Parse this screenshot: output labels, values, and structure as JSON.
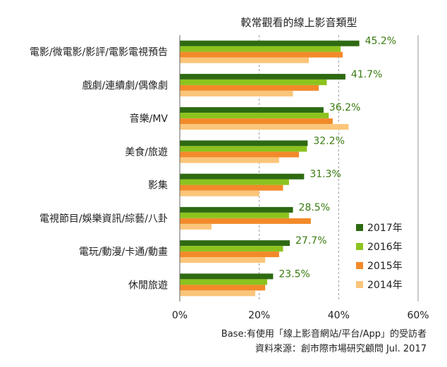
{
  "chart_data": {
    "type": "bar",
    "orientation": "horizontal",
    "title": "較常觀看的線上影音類型",
    "categories": [
      "電影/微電影/影評/電影電視預告",
      "戲劇/連續劇/偶像劇",
      "音樂/MV",
      "美食/旅遊",
      "影集",
      "電視節目/娛樂資訊/綜藝/八卦",
      "電玩/動漫/卡通/動畫",
      "休閒旅遊"
    ],
    "series": [
      {
        "name": "2017年",
        "color": "#2e6a12",
        "values": [
          45.2,
          41.7,
          36.2,
          32.2,
          31.3,
          28.5,
          27.7,
          23.5
        ]
      },
      {
        "name": "2016年",
        "color": "#8cc31e",
        "values": [
          40.5,
          37.0,
          37.5,
          32.0,
          27.5,
          27.5,
          26.0,
          22.0
        ]
      },
      {
        "name": "2015年",
        "color": "#f28a2a",
        "values": [
          41.0,
          35.0,
          38.5,
          30.0,
          26.0,
          33.0,
          25.0,
          21.5
        ]
      },
      {
        "name": "2014年",
        "color": "#fbc57a",
        "values": [
          32.5,
          28.5,
          42.5,
          25.0,
          20.0,
          8.0,
          21.5,
          19.0
        ]
      }
    ],
    "data_labels": [
      "45.2%",
      "41.7%",
      "36.2%",
      "32.2%",
      "31.3%",
      "28.5%",
      "27.7%",
      "23.5%"
    ],
    "x_ticks": [
      "0%",
      "20%",
      "40%",
      "60%"
    ],
    "xlim": [
      0,
      60
    ],
    "grid": true,
    "legend_position": "bottom-right"
  },
  "footer": {
    "base": "Base:有使用「線上影音網站/平台/App」的受訪者",
    "source": "資料來源：創市際市場研究顧問 Jul. 2017"
  }
}
